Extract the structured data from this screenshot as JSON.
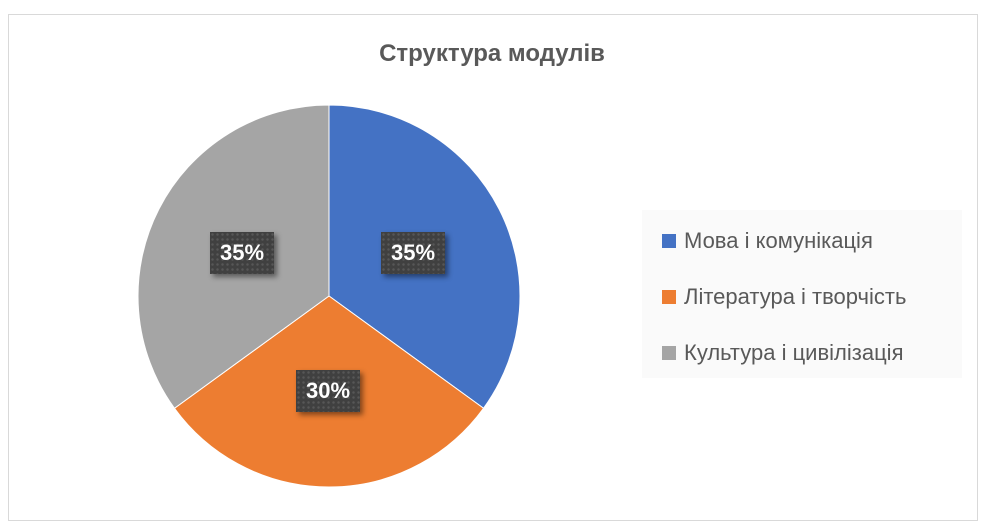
{
  "chart_data": {
    "type": "pie",
    "title": "Структура модулів",
    "categories": [
      "Мова і комунікація",
      "Література і творчість",
      "Культура і цивілізація"
    ],
    "values": [
      35,
      30,
      35
    ],
    "data_labels": [
      "35%",
      "30%",
      "35%"
    ],
    "colors": [
      "#4472c4",
      "#ed7d31",
      "#a5a5a5"
    ],
    "legend_position": "right"
  }
}
